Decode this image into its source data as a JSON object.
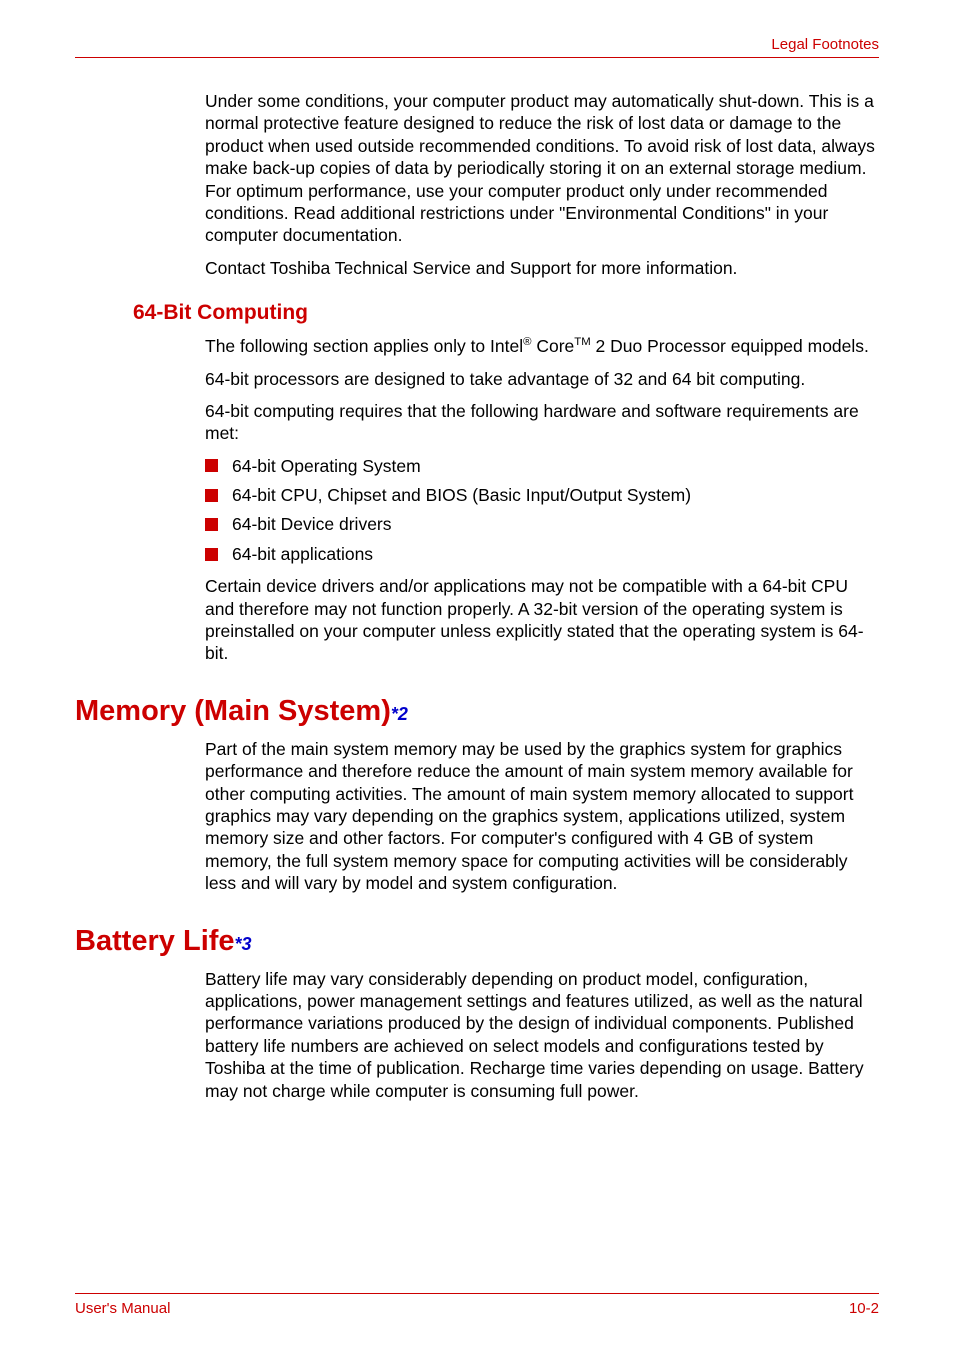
{
  "header": {
    "title": "Legal Footnotes"
  },
  "intro": {
    "p1": "Under some conditions, your computer product may automatically shut-down. This is a normal protective feature designed to reduce the risk of lost data or damage to the product when used outside recommended conditions. To avoid risk of lost data, always make back-up copies of data by periodically storing it on an external storage medium. For optimum performance, use your computer product only under recommended conditions. Read additional restrictions under \"Environmental Conditions\" in your computer documentation.",
    "p2": "Contact Toshiba Technical Service and Support for more information."
  },
  "section64": {
    "heading": "64-Bit Computing",
    "p1_pre": "The following section applies only to Intel",
    "p1_reg": "®",
    "p1_mid": " Core",
    "p1_tm": "TM",
    "p1_post": " 2 Duo Processor equipped models.",
    "p2": "64-bit processors are designed to take advantage of 32 and 64 bit computing.",
    "p3": "64-bit computing requires that the following hardware and software requirements are met:",
    "bullets": [
      "64-bit Operating System",
      "64-bit CPU, Chipset and BIOS (Basic Input/Output System)",
      "64-bit Device drivers",
      "64-bit applications"
    ],
    "p4": "Certain device drivers and/or applications may not be compatible with a 64-bit CPU and therefore may not function properly. A 32-bit version of the operating system is preinstalled on your computer unless explicitly stated that the operating system is 64-bit."
  },
  "memory": {
    "heading": "Memory (Main System)",
    "ref": "*2",
    "p1": "Part of the main system memory may be used by the graphics system for graphics performance and therefore reduce the amount of main system memory available for other computing activities. The amount of main system memory allocated to support graphics may vary depending on the graphics system, applications utilized, system memory size and other factors. For computer's configured with 4 GB of system memory, the full system memory space for computing activities will be considerably less and will vary by model and system configuration."
  },
  "battery": {
    "heading": "Battery Life",
    "ref": "*3",
    "p1": "Battery life may vary considerably depending on product model, configuration, applications, power management settings and features utilized, as well as the natural performance variations produced by the design of individual components. Published battery life numbers are achieved on select models and configurations tested by Toshiba at the time of publication. Recharge time varies depending on usage. Battery may not charge while computer is consuming full power."
  },
  "footer": {
    "left": "User's Manual",
    "right": "10-2"
  },
  "colors": {
    "accent": "#cc0000",
    "link": "#0000cc",
    "text": "#000000",
    "background": "#ffffff"
  }
}
